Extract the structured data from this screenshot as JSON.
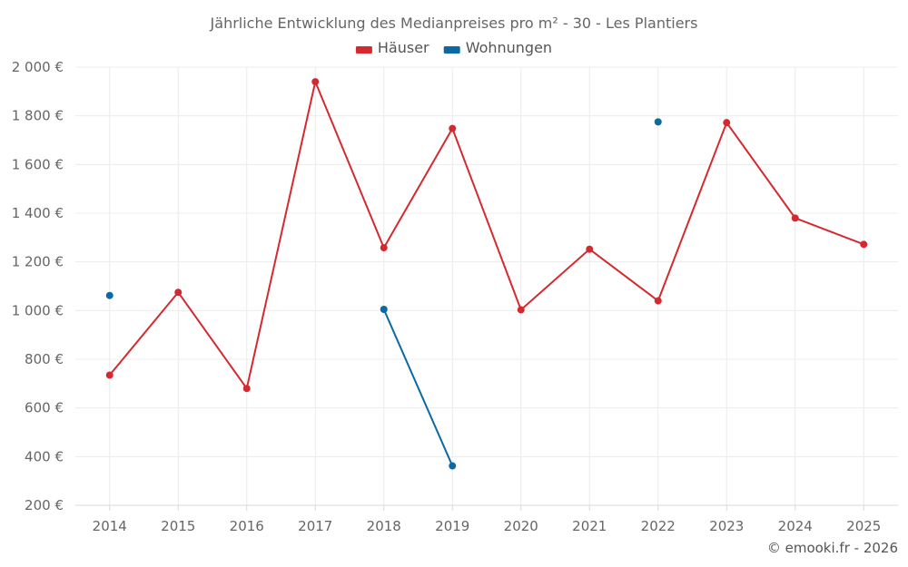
{
  "chart_data": {
    "type": "line",
    "title": "Jährliche Entwicklung des Medianpreises pro m² - 30 - Les Plantiers",
    "xlabel": "",
    "ylabel": "",
    "categories": [
      "2014",
      "2015",
      "2016",
      "2017",
      "2018",
      "2019",
      "2020",
      "2021",
      "2022",
      "2023",
      "2024",
      "2025"
    ],
    "ylim": [
      200,
      2000
    ],
    "yticks": [
      200,
      400,
      600,
      800,
      1000,
      1200,
      1400,
      1600,
      1800,
      2000
    ],
    "ytick_labels": [
      "200 €",
      "400 €",
      "600 €",
      "800 €",
      "1 000 €",
      "1 200 €",
      "1 400 €",
      "1 600 €",
      "1 800 €",
      "2 000 €"
    ],
    "grid": true,
    "legend_position": "top-center",
    "series": [
      {
        "name": "Häuser",
        "color": "#d42a2f",
        "values": [
          735,
          1075,
          680,
          1940,
          1258,
          1748,
          1003,
          1252,
          1040,
          1772,
          1380,
          1272
        ]
      },
      {
        "name": "Wohnungen",
        "color": "#0b69a3",
        "values": [
          1062,
          null,
          null,
          null,
          1005,
          362,
          null,
          null,
          1775,
          null,
          null,
          null
        ]
      }
    ]
  },
  "credit": "© emooki.fr - 2026"
}
